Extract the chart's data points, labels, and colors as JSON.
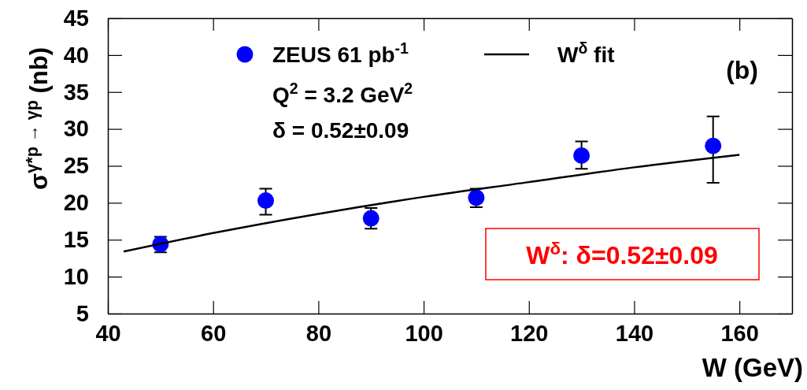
{
  "chart_data": {
    "type": "scatter",
    "xlabel": "W (GeV)",
    "ylabel": "σ$^{γ*p → γp}$ (nb)",
    "xlim": [
      40,
      170
    ],
    "ylim": [
      5,
      45
    ],
    "xticks": [
      40,
      60,
      80,
      100,
      120,
      140,
      160
    ],
    "yticks": [
      5,
      10,
      15,
      20,
      25,
      30,
      35,
      40,
      45
    ],
    "legend": "top",
    "marker": "circle",
    "series": [
      {
        "name": "ZEUS 61 pb$^{-1}$",
        "color": "#0000ff",
        "x": [
          50,
          70,
          90,
          110,
          130,
          155
        ],
        "values": [
          14.4,
          20.3,
          17.9,
          20.7,
          26.4,
          27.7
        ],
        "errors": [
          [
            13.3,
            15.4
          ],
          [
            18.4,
            21.9
          ],
          [
            16.5,
            19.3
          ],
          [
            19.4,
            21.9
          ],
          [
            24.6,
            28.3
          ],
          [
            22.7,
            31.7
          ]
        ]
      },
      {
        "name": "W$^{δ}$ fit",
        "type": "line",
        "marker": "none",
        "color": "#000000",
        "x": [
          43,
          60,
          80,
          100,
          120,
          140,
          160
        ],
        "values": [
          13.4,
          15.9,
          18.5,
          20.8,
          22.8,
          24.8,
          26.5
        ]
      }
    ],
    "annotations": [
      "Q$^{2}$ = 3.2 GeV$^{2}$",
      "δ = 0.52±0.09",
      "(b)",
      "W$^{δ}$:  δ=0.52±0.09"
    ]
  }
}
